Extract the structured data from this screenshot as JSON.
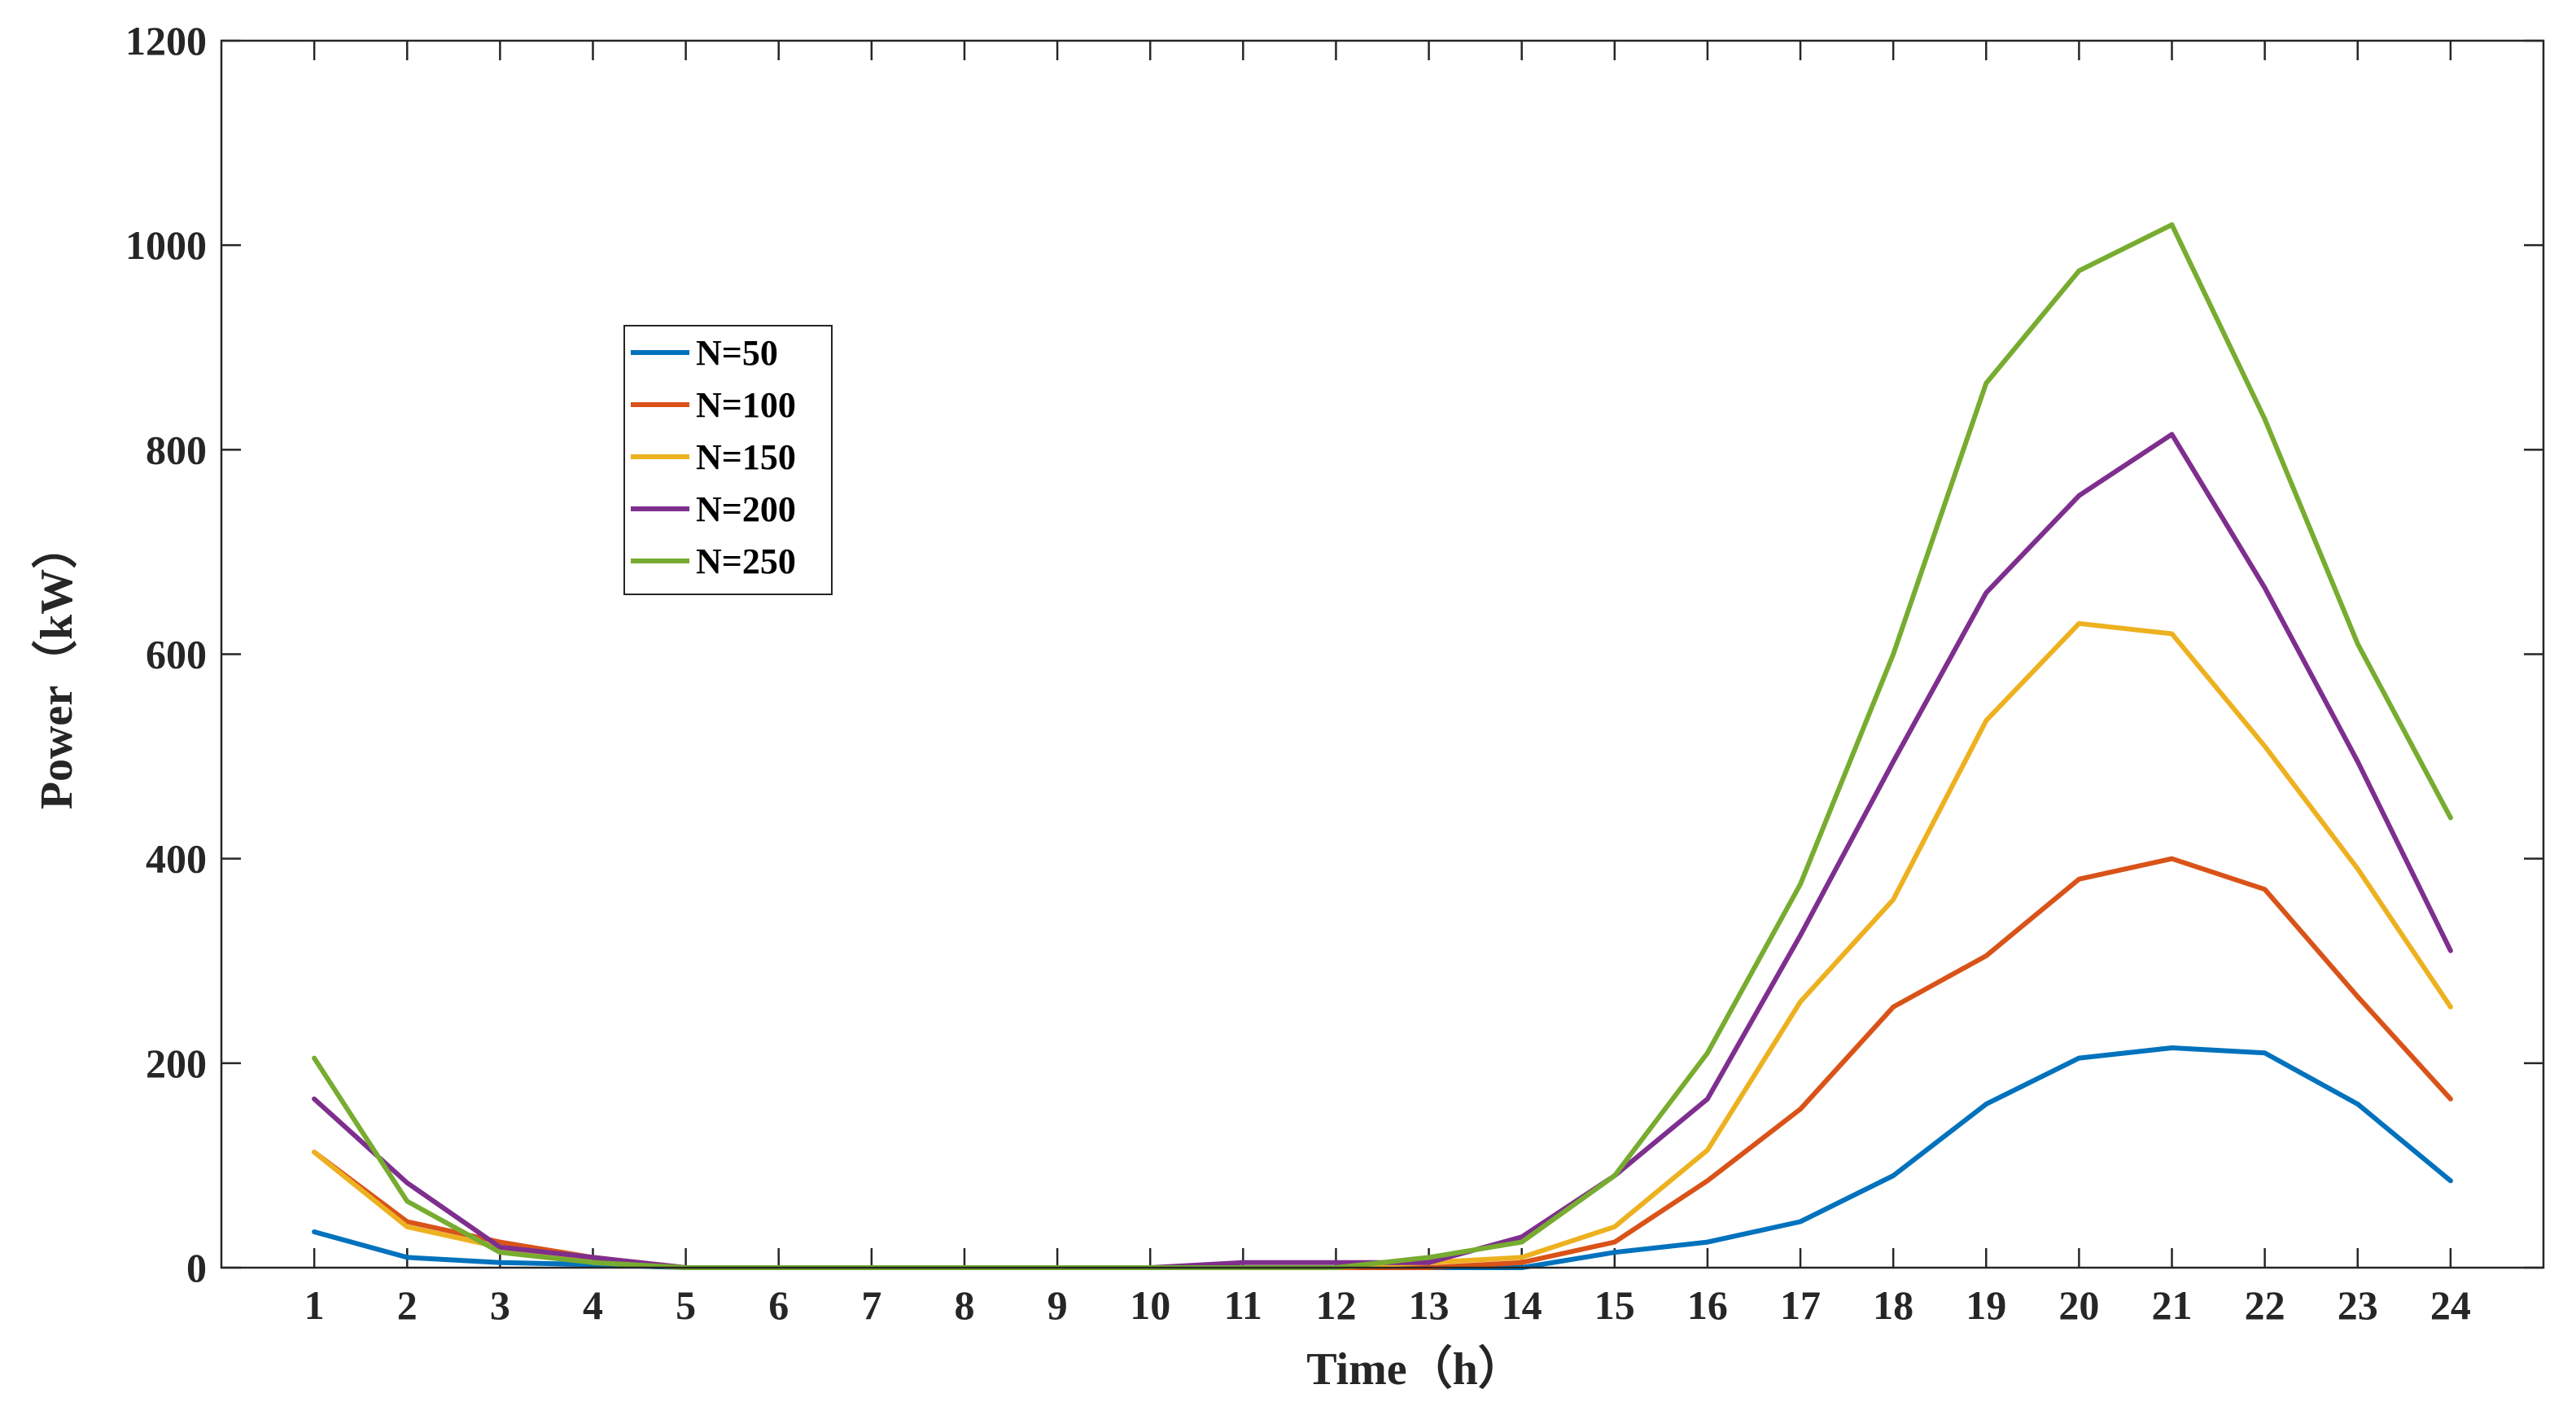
{
  "chart_data": {
    "type": "line",
    "title": "",
    "xlabel": "Time（h）",
    "ylabel": "Power（kW）",
    "x": [
      1,
      2,
      3,
      4,
      5,
      6,
      7,
      8,
      9,
      10,
      11,
      12,
      13,
      14,
      15,
      16,
      17,
      18,
      19,
      20,
      21,
      22,
      23,
      24
    ],
    "xlim": [
      0,
      25
    ],
    "ylim": [
      0,
      1200
    ],
    "yticks": [
      0,
      200,
      400,
      600,
      800,
      1000,
      1200
    ],
    "grid": false,
    "legend_position": "upper-left",
    "series": [
      {
        "name": "N=50",
        "color": "#0072BD",
        "values": [
          35,
          10,
          5,
          3,
          0,
          0,
          0,
          0,
          0,
          0,
          0,
          0,
          0,
          0,
          15,
          25,
          45,
          90,
          160,
          205,
          215,
          210,
          160,
          85
        ]
      },
      {
        "name": "N=100",
        "color": "#D95319",
        "values": [
          113,
          45,
          25,
          10,
          0,
          0,
          0,
          0,
          0,
          0,
          0,
          0,
          0,
          5,
          25,
          85,
          155,
          255,
          305,
          380,
          400,
          370,
          265,
          165
        ]
      },
      {
        "name": "N=150",
        "color": "#EDB120",
        "values": [
          113,
          40,
          20,
          5,
          0,
          0,
          0,
          0,
          0,
          0,
          0,
          0,
          5,
          10,
          40,
          115,
          260,
          360,
          535,
          630,
          620,
          510,
          390,
          255
        ]
      },
      {
        "name": "N=200",
        "color": "#7E2F8E",
        "values": [
          165,
          83,
          20,
          10,
          0,
          0,
          0,
          0,
          0,
          0,
          5,
          5,
          5,
          30,
          90,
          165,
          325,
          495,
          660,
          755,
          815,
          665,
          495,
          310
        ]
      },
      {
        "name": "N=250",
        "color": "#77AC30",
        "values": [
          205,
          65,
          15,
          5,
          0,
          0,
          0,
          0,
          0,
          0,
          0,
          0,
          10,
          25,
          90,
          210,
          375,
          600,
          865,
          975,
          1020,
          830,
          610,
          440
        ]
      }
    ]
  }
}
